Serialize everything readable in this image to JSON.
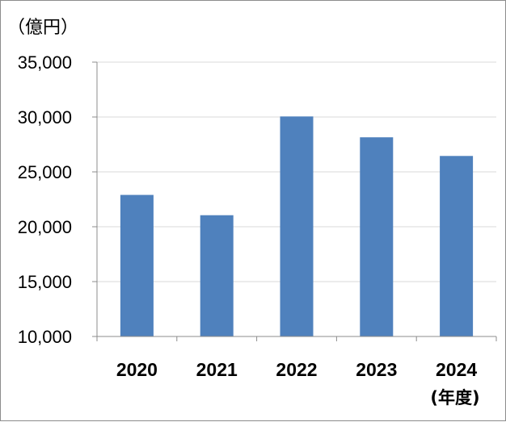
{
  "chart_data": {
    "type": "bar",
    "unit_label": "（億円）",
    "xlabel": "(年度)",
    "ylabel": "",
    "categories": [
      "2020",
      "2021",
      "2022",
      "2023",
      "2024"
    ],
    "values": [
      22900,
      21050,
      30050,
      28150,
      26450
    ],
    "ylim": [
      10000,
      35000
    ],
    "yticks": [
      10000,
      15000,
      20000,
      25000,
      30000,
      35000
    ],
    "ytick_labels": [
      "10,000",
      "15,000",
      "20,000",
      "25,000",
      "30,000",
      "35,000"
    ],
    "grid": true,
    "bar_color": "#4f81bd",
    "grid_color": "#d9d9d9",
    "axis_color": "#8c8c8c"
  }
}
